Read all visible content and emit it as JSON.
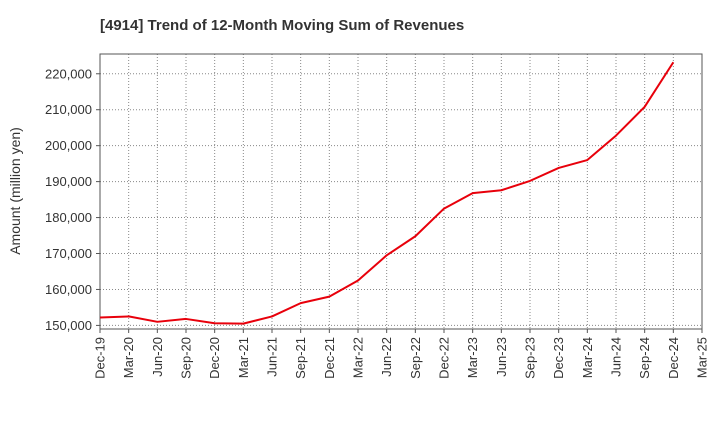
{
  "chart_data": {
    "type": "line",
    "title": "[4914]  Trend of 12-Month Moving Sum of Revenues",
    "ylabel": "Amount (million yen)",
    "xlabel": "",
    "ylim": [
      149000,
      225500
    ],
    "yticks": [
      150000,
      160000,
      170000,
      180000,
      190000,
      200000,
      210000,
      220000
    ],
    "ytick_labels": [
      "150,000",
      "160,000",
      "170,000",
      "180,000",
      "190,000",
      "200,000",
      "210,000",
      "220,000"
    ],
    "categories": [
      "Dec-19",
      "Mar-20",
      "Jun-20",
      "Sep-20",
      "Dec-20",
      "Mar-21",
      "Jun-21",
      "Sep-21",
      "Dec-21",
      "Mar-22",
      "Jun-22",
      "Sep-22",
      "Dec-22",
      "Mar-23",
      "Jun-23",
      "Sep-23",
      "Dec-23",
      "Mar-24",
      "Jun-24",
      "Sep-24",
      "Dec-24",
      "Mar-25"
    ],
    "series": [
      {
        "color": "#e8000b",
        "values": [
          152200,
          152500,
          151000,
          151800,
          150600,
          150500,
          152500,
          156200,
          158000,
          162500,
          169500,
          174800,
          182500,
          186800,
          187600,
          190200,
          193800,
          196000,
          202800,
          210800,
          223200,
          null
        ]
      }
    ],
    "grid": true,
    "legend": "none"
  }
}
